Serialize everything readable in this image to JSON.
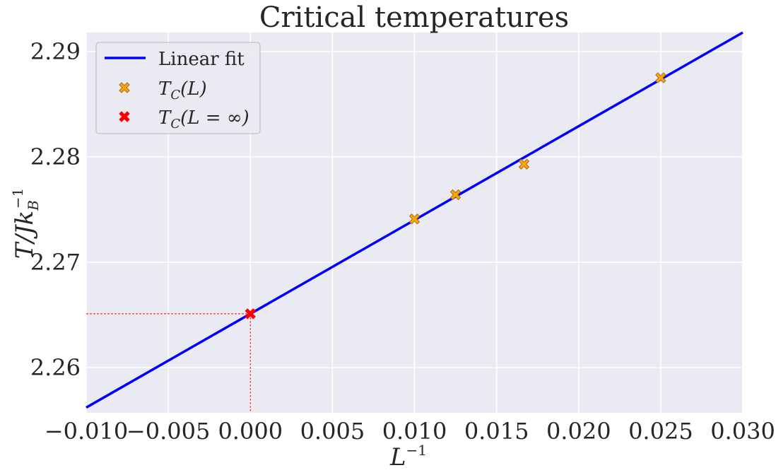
{
  "chart_data": {
    "type": "scatter",
    "title": "Critical temperatures",
    "xlabel": "L",
    "xlabel_sup": "−1",
    "ylabel": "T/Jk",
    "ylabel_sub": "B",
    "ylabel_sup": "−1",
    "xlim": [
      -0.01,
      0.03
    ],
    "ylim": [
      2.2557,
      2.2918
    ],
    "x_ticks": [
      -0.01,
      -0.005,
      0.0,
      0.005,
      0.01,
      0.015,
      0.02,
      0.025,
      0.03
    ],
    "x_tick_labels": [
      "−0.010",
      "−0.005",
      "0.000",
      "0.005",
      "0.010",
      "0.015",
      "0.020",
      "0.025",
      "0.030"
    ],
    "y_ticks": [
      2.26,
      2.27,
      2.28,
      2.29
    ],
    "y_tick_labels": [
      "2.26",
      "2.27",
      "2.28",
      "2.29"
    ],
    "grid": true,
    "legend_placement": "top-left",
    "legend": [
      {
        "label": "Linear fit",
        "kind": "line",
        "color": "#0000ff"
      },
      {
        "label_main": "T",
        "label_sub": "C",
        "label_rest": "(L)",
        "kind": "marker",
        "color": "#ffa500"
      },
      {
        "label_main": "T",
        "label_sub": "C",
        "label_rest": "(L = ∞)",
        "kind": "marker",
        "color": "#ff0000"
      }
    ],
    "series": [
      {
        "kind": "line",
        "color": "#0000ff",
        "x": [
          -0.01,
          0.03
        ],
        "y": [
          2.2562,
          2.2918
        ]
      },
      {
        "kind": "scatter",
        "color": "#ffa500",
        "x": [
          0.01,
          0.0125,
          0.01667,
          0.025
        ],
        "y": [
          2.2741,
          2.2764,
          2.2793,
          2.2875
        ]
      },
      {
        "kind": "scatter",
        "color": "#ff0000",
        "x": [
          0.0
        ],
        "y": [
          2.2651
        ]
      }
    ],
    "guide_lines": {
      "x": 0.0,
      "y": 2.2651,
      "color": "#ff0000",
      "style": "dashed"
    },
    "background": "#eaeaf2",
    "grid_color": "#ffffff"
  }
}
